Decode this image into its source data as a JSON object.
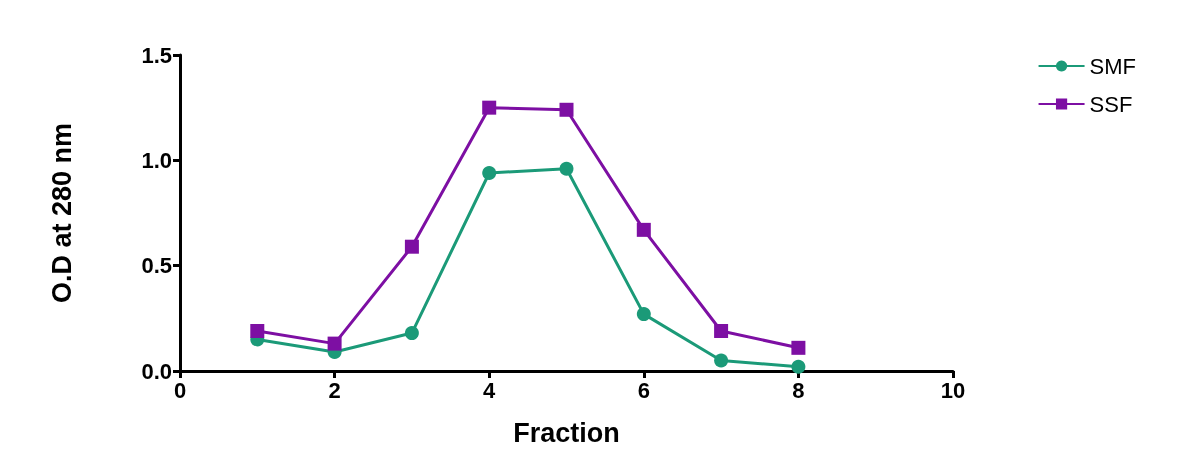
{
  "chart_data": {
    "type": "line",
    "xlabel": "Fraction",
    "ylabel": "O.D at 280 nm",
    "x": [
      1,
      2,
      3,
      4,
      5,
      6,
      7,
      8
    ],
    "series": [
      {
        "name": "SMF",
        "color": "#1b9a78",
        "marker": "circle",
        "values": [
          0.15,
          0.09,
          0.18,
          0.94,
          0.96,
          0.27,
          0.05,
          0.02
        ]
      },
      {
        "name": "SSF",
        "color": "#7d0fa3",
        "marker": "square",
        "values": [
          0.19,
          0.13,
          0.59,
          1.25,
          1.24,
          0.67,
          0.19,
          0.11
        ]
      }
    ],
    "xlim": [
      0,
      10
    ],
    "xticks": [
      0,
      2,
      4,
      6,
      8,
      10
    ],
    "ylim": [
      0,
      1.5
    ],
    "yticks": [
      {
        "value": 0,
        "label": "0.0"
      },
      0.5,
      {
        "value": 1,
        "label": "1.0"
      },
      1.5
    ],
    "grid": false,
    "legend": "top right",
    "line_style": "solid"
  }
}
